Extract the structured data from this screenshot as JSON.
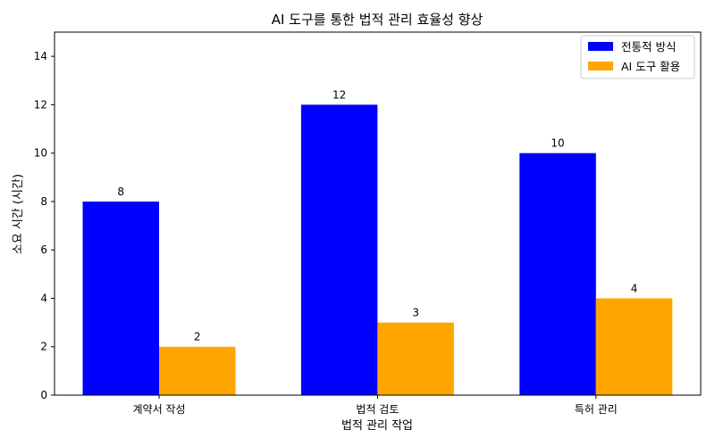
{
  "chart_data": {
    "type": "bar",
    "title": "AI 도구를 통한 법적 관리 효율성 향상",
    "xlabel": "법적 관리 작업",
    "ylabel": "소요 시간 (시간)",
    "categories": [
      "계약서 작성",
      "법적 검토",
      "특허 관리"
    ],
    "series": [
      {
        "name": "전통적 방식",
        "values": [
          8,
          12,
          10
        ],
        "color": "#0000ff"
      },
      {
        "name": "AI 도구 활용",
        "values": [
          2,
          3,
          4
        ],
        "color": "#ffa500"
      }
    ],
    "ylim": [
      0,
      15
    ],
    "yticks": [
      0,
      2,
      4,
      6,
      8,
      10,
      12,
      14
    ],
    "grid": false,
    "legend_position": "top-right",
    "data_labels": true
  }
}
